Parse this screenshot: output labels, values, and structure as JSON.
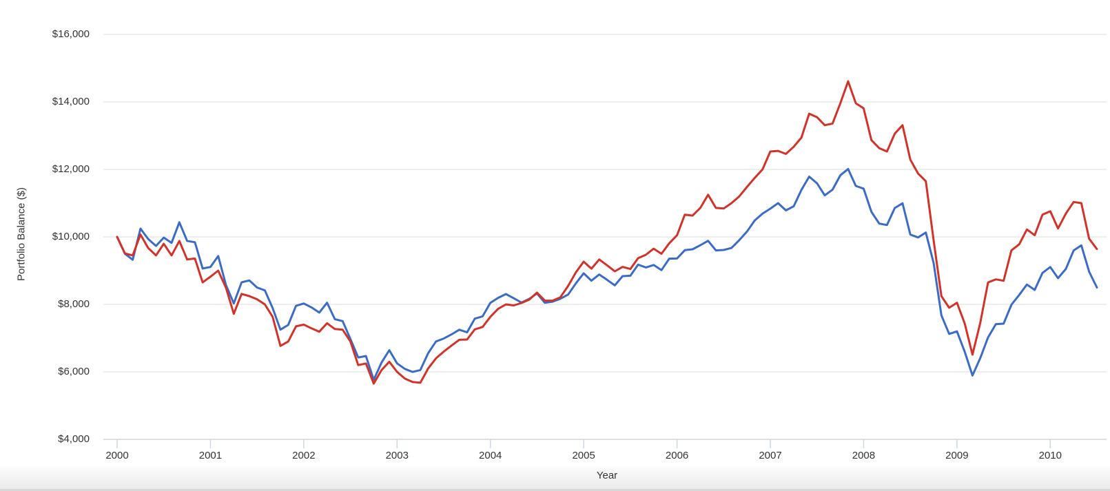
{
  "chart_data": {
    "type": "line",
    "title": "",
    "xlabel": "Year",
    "ylabel": "Portfolio Balance ($)",
    "x_tick_labels": [
      "2000",
      "2001",
      "2002",
      "2003",
      "2004",
      "2005",
      "2006",
      "2007",
      "2008",
      "2009",
      "2010"
    ],
    "y_tick_values": [
      4000,
      6000,
      8000,
      10000,
      12000,
      14000,
      16000
    ],
    "y_tick_labels": [
      "$4,000",
      "$6,000",
      "$8,000",
      "$10,000",
      "$12,000",
      "$14,000",
      "$16,000"
    ],
    "ylim": [
      4000,
      16000
    ],
    "x_start_year": 2000,
    "x_step_years": 0.083333,
    "frequency": "monthly",
    "grid": "horizontal",
    "legend": "none",
    "series": [
      {
        "name": "blue-line",
        "color": "#3a6bc7",
        "values": [
          10000,
          9503,
          9323,
          10245,
          9937,
          9733,
          9979,
          9823,
          10433,
          9882,
          9840,
          9064,
          9109,
          9432,
          8572,
          8029,
          8653,
          8711,
          8499,
          8415,
          7889,
          7252,
          7390,
          7957,
          8027,
          7910,
          7757,
          8049,
          7561,
          7505,
          6971,
          6427,
          6469,
          5766,
          6273,
          6642,
          6252,
          6088,
          5997,
          6055,
          6554,
          6899,
          6987,
          7110,
          7249,
          7172,
          7578,
          7645,
          8045,
          8193,
          8307,
          8182,
          8053,
          8164,
          8322,
          8047,
          8079,
          8167,
          8291,
          8627,
          8920,
          8703,
          8886,
          8729,
          8563,
          8836,
          8849,
          9178,
          9094,
          9168,
          9015,
          9356,
          9359,
          9607,
          9633,
          9753,
          9884,
          9600,
          9613,
          9672,
          9902,
          10157,
          10488,
          10687,
          10837,
          11001,
          10786,
          10906,
          11389,
          11786,
          11590,
          11231,
          11399,
          11825,
          12013,
          11511,
          11431,
          10745,
          10396,
          10351,
          10855,
          10996,
          10069,
          9984,
          10129,
          9226,
          7676,
          7125,
          7201,
          6594,
          5892,
          6408,
          7021,
          7414,
          7428,
          7990,
          8279,
          8588,
          8428,
          8933,
          9106,
          8778,
          9050,
          9596,
          9748,
          8970,
          8501
        ]
      },
      {
        "name": "red-line",
        "color": "#d23228",
        "values": [
          10000,
          9510,
          9450,
          10070,
          9670,
          9450,
          9795,
          9450,
          9880,
          9330,
          9360,
          8650,
          8820,
          9000,
          8490,
          7720,
          8310,
          8245,
          8150,
          8000,
          7630,
          6770,
          6900,
          7350,
          7400,
          7290,
          7190,
          7440,
          7270,
          7250,
          6900,
          6200,
          6250,
          5650,
          6050,
          6300,
          6000,
          5800,
          5700,
          5680,
          6100,
          6400,
          6600,
          6780,
          6950,
          6960,
          7260,
          7330,
          7630,
          7870,
          8000,
          7970,
          8040,
          8140,
          8350,
          8110,
          8110,
          8210,
          8550,
          8950,
          9265,
          9060,
          9330,
          9160,
          8980,
          9110,
          9050,
          9370,
          9470,
          9650,
          9500,
          9810,
          10050,
          10660,
          10630,
          10860,
          11250,
          10860,
          10840,
          11000,
          11200,
          11480,
          11750,
          12000,
          12530,
          12550,
          12460,
          12670,
          12940,
          13650,
          13550,
          13310,
          13360,
          13960,
          14610,
          13960,
          13810,
          12870,
          12630,
          12530,
          13060,
          13310,
          12290,
          11880,
          11650,
          9900,
          8245,
          7900,
          8050,
          7430,
          6510,
          7450,
          8650,
          8740,
          8700,
          9600,
          9780,
          10220,
          10050,
          10660,
          10760,
          10250,
          10690,
          11035,
          11000,
          9945,
          9640
        ]
      }
    ],
    "style": {
      "gridline_color": "#e9e9e9",
      "baseline_color": "#d6d6d6",
      "tick_color": "#c9d6ea",
      "label_color": "#333333",
      "background": "#ffffff"
    }
  }
}
